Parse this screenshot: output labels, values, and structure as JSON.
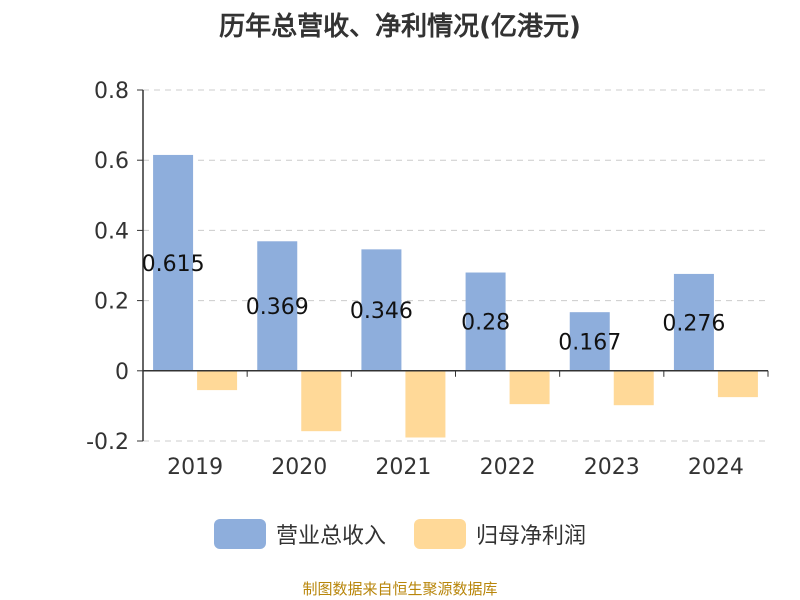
{
  "chart_data": {
    "type": "bar",
    "title": "历年总营收、净利情况(亿港元)",
    "categories": [
      "2019",
      "2020",
      "2021",
      "2022",
      "2023",
      "2024"
    ],
    "series": [
      {
        "name": "营业总收入",
        "values": [
          0.615,
          0.369,
          0.346,
          0.28,
          0.167,
          0.276
        ],
        "color": "#8eaedc",
        "labels": [
          "0.615",
          "0.369",
          "0.346",
          "0.28",
          "0.167",
          "0.276"
        ]
      },
      {
        "name": "归母净利润",
        "values": [
          -0.055,
          -0.172,
          -0.19,
          -0.095,
          -0.098,
          -0.075
        ],
        "color": "#ffd998"
      }
    ],
    "ylim": [
      -0.2,
      0.8
    ],
    "yticks": [
      "-0.2",
      "0",
      "0.2",
      "0.4",
      "0.6",
      "0.8"
    ],
    "grid": true,
    "legend_position": "bottom"
  },
  "footer": {
    "source": "制图数据来自恒生聚源数据库"
  }
}
